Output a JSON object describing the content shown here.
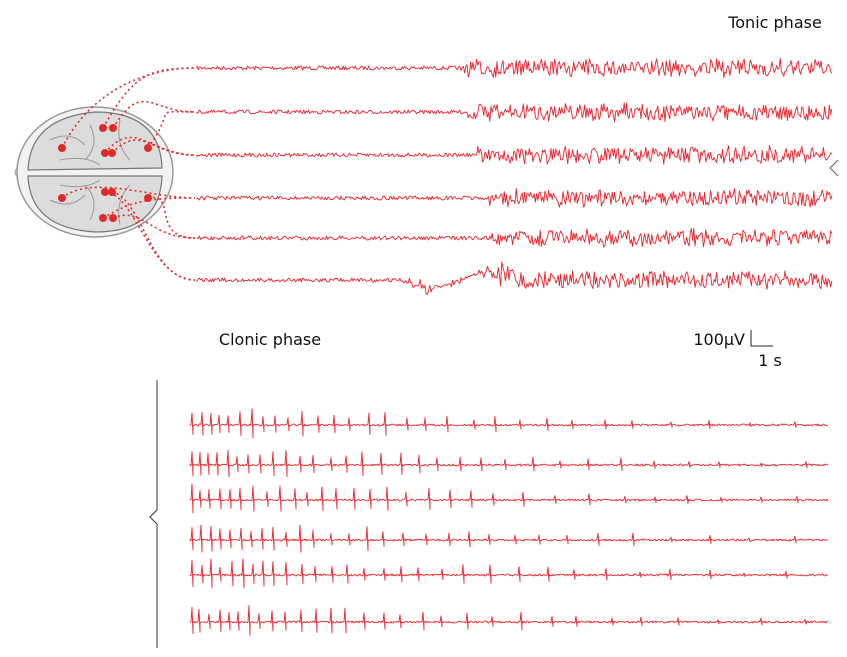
{
  "tonic": {
    "label": "Tonic phase"
  },
  "clonic": {
    "label": "Clonic phase"
  },
  "scale_bar": {
    "amplitude": "100μV",
    "time": "1 s"
  }
}
